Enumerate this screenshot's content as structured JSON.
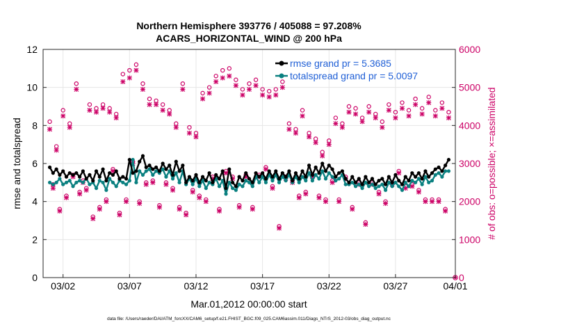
{
  "chart_data": {
    "type": "line",
    "title_line1": "Northern Hemisphere 393776 / 405088 = 97.208%",
    "title_line2": "ACARS_HORIZONTAL_WIND @ 200 hPa",
    "ylabel_left": "rmse and totalspread",
    "ylabel_right": "# of obs: o=possible; ×=assimilated",
    "xlabel": "Mar.01,2012 00:00:00 start",
    "footnote": "data file: /Users/raeder/DAI/ATM_forcXX/CAM6_setup/f.e21.FHIST_BGC.f09_025.CAM6assim.011/Diags_NTrS_2012-03/obs_diag_output.nc",
    "xlim": [
      0.5,
      31.5
    ],
    "ylim_left": [
      0,
      12
    ],
    "ylim_right": [
      0,
      6000
    ],
    "yticks_left": [
      "0",
      "2",
      "4",
      "6",
      "8",
      "10",
      "12"
    ],
    "yticks_right": [
      "0",
      "1000",
      "2000",
      "3000",
      "4000",
      "5000",
      "6000"
    ],
    "xticks": [
      {
        "x": 2,
        "label": "03/02"
      },
      {
        "x": 7,
        "label": "03/07"
      },
      {
        "x": 12,
        "label": "03/12"
      },
      {
        "x": 17,
        "label": "03/17"
      },
      {
        "x": 22,
        "label": "03/22"
      },
      {
        "x": 27,
        "label": "03/27"
      },
      {
        "x": 32,
        "label": "04/01"
      }
    ],
    "x": [
      1.0,
      1.25,
      1.5,
      1.75,
      2.0,
      2.25,
      2.5,
      2.75,
      3.0,
      3.25,
      3.5,
      3.75,
      4.0,
      4.25,
      4.5,
      4.75,
      5.0,
      5.25,
      5.5,
      5.75,
      6.0,
      6.25,
      6.5,
      6.75,
      7.0,
      7.25,
      7.5,
      7.75,
      8.0,
      8.25,
      8.5,
      8.75,
      9.0,
      9.25,
      9.5,
      9.75,
      10.0,
      10.25,
      10.5,
      10.75,
      11.0,
      11.25,
      11.5,
      11.75,
      12.0,
      12.25,
      12.5,
      12.75,
      13.0,
      13.25,
      13.5,
      13.75,
      14.0,
      14.25,
      14.5,
      14.75,
      15.0,
      15.25,
      15.5,
      15.75,
      16.0,
      16.25,
      16.5,
      16.75,
      17.0,
      17.25,
      17.5,
      17.75,
      18.0,
      18.25,
      18.5,
      18.75,
      19.0,
      19.25,
      19.5,
      19.75,
      20.0,
      20.25,
      20.5,
      20.75,
      21.0,
      21.25,
      21.5,
      21.75,
      22.0,
      22.25,
      22.5,
      22.75,
      23.0,
      23.25,
      23.5,
      23.75,
      24.0,
      24.25,
      24.5,
      24.75,
      25.0,
      25.25,
      25.5,
      25.75,
      26.0,
      26.25,
      26.5,
      26.75,
      27.0,
      27.25,
      27.5,
      27.75,
      28.0,
      28.25,
      28.5,
      28.75,
      29.0,
      29.25,
      29.5,
      29.75,
      30.0,
      30.25,
      30.5,
      30.75,
      31.0
    ],
    "series": [
      {
        "name": "rmse",
        "legend": "rmse grand pr = 5.3685",
        "color": "#000000",
        "axis": "left",
        "values": [
          5.8,
          5.5,
          5.7,
          5.4,
          5.6,
          5.3,
          5.5,
          5.4,
          5.5,
          5.3,
          5.6,
          5.2,
          5.4,
          5.1,
          5.6,
          5.3,
          5.7,
          5.1,
          5.5,
          5.4,
          5.6,
          5.2,
          5.3,
          5.2,
          6.2,
          5.5,
          5.6,
          6.1,
          6.4,
          5.8,
          5.9,
          5.7,
          5.8,
          5.6,
          6.0,
          5.7,
          5.9,
          5.4,
          6.1,
          5.6,
          5.9,
          5.0,
          5.3,
          5.1,
          5.4,
          5.0,
          5.3,
          5.1,
          5.5,
          5.0,
          5.4,
          5.2,
          5.6,
          4.7,
          5.7,
          5.0,
          4.8,
          5.3,
          5.1,
          5.5,
          5.2,
          5.0,
          5.5,
          5.3,
          5.5,
          5.2,
          5.6,
          5.3,
          5.6,
          5.2,
          5.5,
          5.3,
          5.6,
          5.1,
          5.5,
          5.2,
          5.6,
          5.3,
          5.9,
          5.4,
          5.8,
          5.5,
          6.0,
          5.6,
          5.9,
          5.7,
          5.3,
          5.5,
          5.6,
          5.2,
          5.0,
          5.3,
          5.0,
          5.2,
          4.9,
          5.3,
          5.0,
          5.2,
          4.9,
          5.1,
          5.2,
          4.9,
          5.3,
          5.0,
          5.4,
          5.1,
          4.9,
          5.3,
          5.1,
          5.5,
          5.3,
          5.5,
          5.2,
          5.6,
          5.3,
          5.5,
          5.7,
          5.8,
          5.6,
          5.9,
          6.2
        ]
      },
      {
        "name": "totalspread",
        "legend": "totalspread grand pr = 5.0097",
        "color": "#0a8080",
        "axis": "left",
        "values": [
          5.0,
          4.9,
          5.0,
          5.2,
          4.9,
          5.0,
          5.1,
          4.8,
          5.0,
          5.1,
          5.0,
          5.2,
          4.9,
          5.0,
          4.7,
          5.1,
          5.0,
          4.6,
          5.2,
          5.0,
          4.8,
          5.1,
          5.0,
          4.9,
          5.1,
          6.2,
          5.0,
          5.6,
          5.4,
          5.6,
          5.7,
          5.4,
          5.6,
          5.5,
          5.7,
          5.3,
          5.6,
          5.2,
          5.5,
          5.0,
          5.6,
          4.9,
          5.2,
          4.9,
          5.2,
          4.8,
          5.1,
          4.7,
          5.0,
          4.9,
          5.2,
          4.8,
          5.1,
          4.4,
          5.0,
          4.7,
          4.6,
          4.9,
          4.8,
          5.1,
          5.0,
          4.8,
          5.3,
          5.0,
          5.3,
          5.0,
          5.4,
          5.1,
          5.4,
          5.0,
          5.3,
          5.1,
          5.4,
          5.0,
          5.3,
          5.0,
          5.3,
          5.1,
          5.5,
          5.1,
          5.4,
          5.2,
          5.6,
          5.2,
          5.5,
          5.3,
          5.1,
          5.2,
          5.4,
          4.9,
          4.9,
          5.0,
          4.8,
          4.9,
          4.7,
          5.0,
          4.8,
          4.9,
          4.7,
          4.8,
          4.9,
          4.6,
          5.0,
          4.8,
          5.0,
          4.8,
          4.6,
          5.0,
          4.8,
          5.1,
          5.0,
          5.2,
          4.9,
          5.3,
          5.0,
          5.1,
          5.4,
          5.5,
          5.3,
          5.6,
          5.6
        ]
      }
    ],
    "obs_possible": {
      "name": "possible",
      "color": "#cc0066",
      "axis": "right",
      "values": [
        4100,
        2450,
        3450,
        1800,
        4400,
        2150,
        4050,
        2700,
        5100,
        2250,
        2550,
        2350,
        4550,
        1600,
        4450,
        1850,
        4550,
        2050,
        4450,
        2850,
        4300,
        1700,
        5350,
        2050,
        5450,
        3050,
        5600,
        2000,
        5100,
        2500,
        4700,
        2550,
        4650,
        1900,
        4550,
        2500,
        4400,
        2350,
        4050,
        1850,
        5100,
        1700,
        3950,
        2300,
        3800,
        2150,
        4850,
        2050,
        5000,
        2650,
        5300,
        1800,
        5450,
        2800,
        5500,
        2650,
        5200,
        1900,
        4950,
        2700,
        5100,
        1850,
        5200,
        2700,
        4950,
        2900,
        4900,
        2400,
        4950,
        1350,
        5150,
        2650,
        4050,
        2550,
        3900,
        2150,
        4400,
        2250,
        3800,
        2700,
        3650,
        2150,
        3300,
        2050,
        3600,
        2550,
        4200,
        2050,
        4050,
        2650,
        4500,
        1850,
        4450,
        2500,
        4200,
        1450,
        4500,
        2500,
        4300,
        2250,
        4100,
        2000,
        4550,
        2500,
        4350,
        2800,
        4600,
        2400,
        4400,
        2450,
        4700,
        2300,
        4450,
        2050,
        4750,
        2050,
        4400,
        2050,
        4600,
        1800,
        4350
      ]
    },
    "obs_assimilated": {
      "name": "assimilated",
      "color": "#cc0066",
      "axis": "right",
      "values": [
        3900,
        2350,
        3350,
        1750,
        4250,
        2100,
        3950,
        2650,
        4950,
        2200,
        2500,
        2300,
        4400,
        1550,
        4350,
        1800,
        4450,
        2000,
        4350,
        2800,
        4200,
        1650,
        5150,
        2000,
        5250,
        3000,
        5450,
        1950,
        4950,
        2450,
        4550,
        2500,
        4550,
        1850,
        4400,
        2450,
        4300,
        2300,
        3950,
        1800,
        4950,
        1650,
        3800,
        2250,
        3700,
        2100,
        4700,
        2000,
        4850,
        2600,
        5150,
        1750,
        5250,
        2750,
        5300,
        2600,
        5050,
        1850,
        4800,
        2650,
        4950,
        1800,
        5050,
        2650,
        4800,
        2850,
        4750,
        2350,
        4800,
        1300,
        5000,
        2600,
        3900,
        2500,
        3800,
        2100,
        4250,
        2200,
        3700,
        2650,
        3550,
        2100,
        3200,
        2000,
        3500,
        2500,
        4050,
        2000,
        3950,
        2600,
        4350,
        1800,
        4300,
        2450,
        4100,
        1400,
        4350,
        2450,
        4200,
        2200,
        3950,
        1950,
        4400,
        2450,
        4200,
        2750,
        4450,
        2350,
        4250,
        2400,
        4550,
        2250,
        4300,
        2000,
        4600,
        2000,
        4250,
        2000,
        4450,
        1750,
        4200
      ]
    }
  }
}
